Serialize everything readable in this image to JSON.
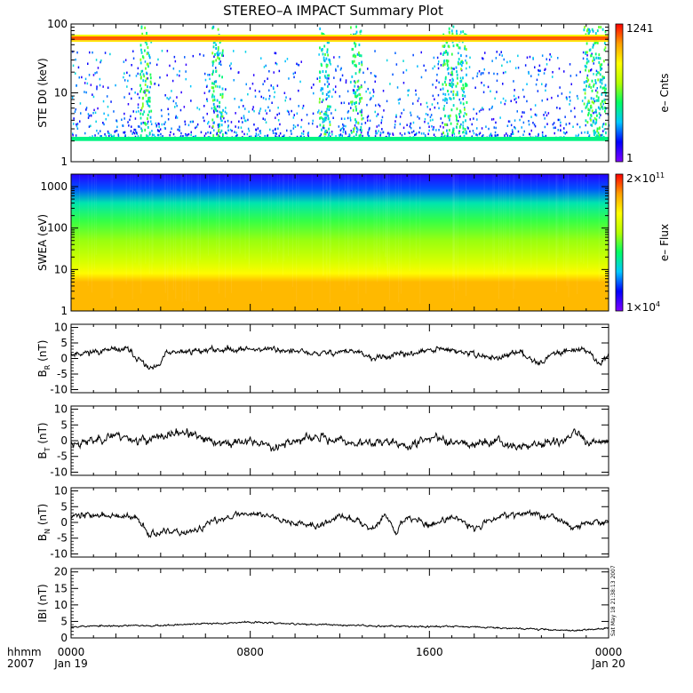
{
  "title": "STEREO–A IMPACT Summary Plot",
  "footer": {
    "hhmm": "hhmm",
    "year": "2007",
    "stamp": "Sat May 18 21:38:13 2007"
  },
  "x_ticks": [
    {
      "time": "0000",
      "date": "Jan 19",
      "hours": 0
    },
    {
      "time": "0800",
      "date": "",
      "hours": 8
    },
    {
      "time": "1600",
      "date": "",
      "hours": 16
    },
    {
      "time": "0000",
      "date": "Jan 20",
      "hours": 24
    }
  ],
  "colors": {
    "axis": "#000000",
    "line": "#000000",
    "colorbar": [
      "#7f00ff",
      "#0000ff",
      "#00c8ff",
      "#00ff64",
      "#b4ff00",
      "#ffff00",
      "#ffa000",
      "#ff0000"
    ]
  },
  "chart_data": [
    {
      "id": "ste",
      "type": "heatmap",
      "ylabel": "STE D0 (keV)",
      "yscale": "log",
      "ylim": [
        1,
        100
      ],
      "y_ticks": [
        {
          "v": 1,
          "label": "1"
        },
        {
          "v": 10,
          "label": "10"
        },
        {
          "v": 100,
          "label": "100"
        }
      ],
      "colorbar": {
        "label": "e– Cnts",
        "max_label": "1241",
        "min_label": "1"
      },
      "bands": [
        {
          "ymin": 58,
          "ymax": 66,
          "level": 0.92
        },
        {
          "ymin": 55,
          "ymax": 58,
          "level": 0.75
        },
        {
          "ymin": 66,
          "ymax": 70,
          "level": 0.7
        },
        {
          "ymin": 2.0,
          "ymax": 2.3,
          "level": 0.4
        }
      ],
      "bursts_hours": [
        3.3,
        6.5,
        11.3,
        12.7,
        16.8,
        17.4,
        23.1,
        23.6
      ]
    },
    {
      "id": "swea",
      "type": "heatmap",
      "ylabel": "SWEA (eV)",
      "yscale": "log",
      "ylim": [
        1,
        2000
      ],
      "y_ticks": [
        {
          "v": 1,
          "label": "1"
        },
        {
          "v": 10,
          "label": "10"
        },
        {
          "v": 100,
          "label": "100"
        },
        {
          "v": 1000,
          "label": "1000"
        }
      ],
      "colorbar": {
        "label": "e– Flux",
        "max_label": "2×10",
        "max_exp": "11",
        "min_label": "1×10",
        "min_exp": "4"
      },
      "energy_levels": [
        {
          "e": 1,
          "level": 0.82
        },
        {
          "e": 5,
          "level": 0.82
        },
        {
          "e": 8,
          "level": 0.72
        },
        {
          "e": 15,
          "level": 0.64
        },
        {
          "e": 50,
          "level": 0.55
        },
        {
          "e": 150,
          "level": 0.47
        },
        {
          "e": 400,
          "level": 0.36
        },
        {
          "e": 900,
          "level": 0.2
        },
        {
          "e": 2000,
          "level": 0.1
        }
      ]
    },
    {
      "id": "br",
      "type": "line",
      "ylabel": "B",
      "ylabel_sub": "R",
      "ylabel_unit": "(nT)",
      "ylim": [
        -11,
        11
      ],
      "y_ticks": [
        -10,
        -5,
        0,
        5,
        10
      ],
      "anchors": [
        {
          "t": 0.0,
          "v": 1.5
        },
        {
          "t": 1.5,
          "v": 2.5
        },
        {
          "t": 2.5,
          "v": 3
        },
        {
          "t": 3.0,
          "v": 0
        },
        {
          "t": 3.5,
          "v": -3.5
        },
        {
          "t": 3.9,
          "v": -3
        },
        {
          "t": 4.2,
          "v": 1.5
        },
        {
          "t": 5.5,
          "v": 2.5
        },
        {
          "t": 7.0,
          "v": 3
        },
        {
          "t": 9.0,
          "v": 3
        },
        {
          "t": 11.0,
          "v": 1.5
        },
        {
          "t": 12.5,
          "v": 2.5
        },
        {
          "t": 13.5,
          "v": 0
        },
        {
          "t": 15.0,
          "v": 1.5
        },
        {
          "t": 16.5,
          "v": 3
        },
        {
          "t": 17.5,
          "v": 2
        },
        {
          "t": 19.0,
          "v": 0
        },
        {
          "t": 20.0,
          "v": 2
        },
        {
          "t": 21.0,
          "v": -1.5
        },
        {
          "t": 21.5,
          "v": 1.5
        },
        {
          "t": 22.0,
          "v": 2.5
        },
        {
          "t": 23.0,
          "v": 3
        },
        {
          "t": 23.6,
          "v": -2
        },
        {
          "t": 24.0,
          "v": 2
        }
      ],
      "noise": 1.3,
      "seed": 11
    },
    {
      "id": "bt",
      "type": "line",
      "ylabel": "B",
      "ylabel_sub": "T",
      "ylabel_unit": "(nT)",
      "ylim": [
        -11,
        11
      ],
      "y_ticks": [
        -10,
        -5,
        0,
        5,
        10
      ],
      "anchors": [
        {
          "t": 0.0,
          "v": -1
        },
        {
          "t": 1.0,
          "v": 0
        },
        {
          "t": 2.0,
          "v": 2
        },
        {
          "t": 3.0,
          "v": 0
        },
        {
          "t": 4.0,
          "v": 1
        },
        {
          "t": 5.0,
          "v": 3
        },
        {
          "t": 6.0,
          "v": 0
        },
        {
          "t": 7.0,
          "v": -1
        },
        {
          "t": 8.0,
          "v": 0
        },
        {
          "t": 9.0,
          "v": -2
        },
        {
          "t": 10.0,
          "v": 0
        },
        {
          "t": 11.0,
          "v": 1
        },
        {
          "t": 12.0,
          "v": 0
        },
        {
          "t": 13.0,
          "v": -1
        },
        {
          "t": 14.0,
          "v": 0
        },
        {
          "t": 15.0,
          "v": -2
        },
        {
          "t": 16.0,
          "v": 1
        },
        {
          "t": 17.0,
          "v": 0
        },
        {
          "t": 18.0,
          "v": -1
        },
        {
          "t": 19.0,
          "v": 0
        },
        {
          "t": 20.0,
          "v": -2
        },
        {
          "t": 21.0,
          "v": -1
        },
        {
          "t": 22.0,
          "v": 0
        },
        {
          "t": 22.5,
          "v": 3
        },
        {
          "t": 23.0,
          "v": -1
        },
        {
          "t": 24.0,
          "v": -0.5
        }
      ],
      "noise": 1.8,
      "seed": 23
    },
    {
      "id": "bn",
      "type": "line",
      "ylabel": "B",
      "ylabel_sub": "N",
      "ylabel_unit": "(nT)",
      "ylim": [
        -11,
        11
      ],
      "y_ticks": [
        -10,
        -5,
        0,
        5,
        10
      ],
      "anchors": [
        {
          "t": 0.0,
          "v": 2.5
        },
        {
          "t": 2.0,
          "v": 2
        },
        {
          "t": 3.0,
          "v": 1
        },
        {
          "t": 3.5,
          "v": -3.5
        },
        {
          "t": 5.5,
          "v": -3
        },
        {
          "t": 6.0,
          "v": -1
        },
        {
          "t": 7.0,
          "v": 2
        },
        {
          "t": 8.0,
          "v": 3
        },
        {
          "t": 9.0,
          "v": 2
        },
        {
          "t": 10.0,
          "v": 0
        },
        {
          "t": 11.0,
          "v": -1.5
        },
        {
          "t": 12.0,
          "v": 2
        },
        {
          "t": 13.0,
          "v": 0
        },
        {
          "t": 13.5,
          "v": -2
        },
        {
          "t": 14.0,
          "v": 2.5
        },
        {
          "t": 14.5,
          "v": -3
        },
        {
          "t": 15.0,
          "v": 2
        },
        {
          "t": 16.0,
          "v": -1
        },
        {
          "t": 17.0,
          "v": 2
        },
        {
          "t": 18.0,
          "v": -2
        },
        {
          "t": 19.0,
          "v": 2
        },
        {
          "t": 20.0,
          "v": 3
        },
        {
          "t": 21.5,
          "v": 2
        },
        {
          "t": 22.5,
          "v": -2
        },
        {
          "t": 23.0,
          "v": 0
        },
        {
          "t": 24.0,
          "v": 0
        }
      ],
      "noise": 1.4,
      "seed": 37
    },
    {
      "id": "bmag",
      "type": "line",
      "ylabel": "IBI (nT)",
      "ylim": [
        0,
        21
      ],
      "y_ticks": [
        0,
        5,
        10,
        15,
        20
      ],
      "anchors": [
        {
          "t": 0.0,
          "v": 3.5
        },
        {
          "t": 4.0,
          "v": 3.8
        },
        {
          "t": 8.0,
          "v": 4.8
        },
        {
          "t": 10.0,
          "v": 4.2
        },
        {
          "t": 14.0,
          "v": 3.6
        },
        {
          "t": 18.0,
          "v": 3.4
        },
        {
          "t": 21.0,
          "v": 2.6
        },
        {
          "t": 22.5,
          "v": 2.2
        },
        {
          "t": 24.0,
          "v": 3.0
        }
      ],
      "noise": 0.35,
      "seed": 53
    }
  ]
}
